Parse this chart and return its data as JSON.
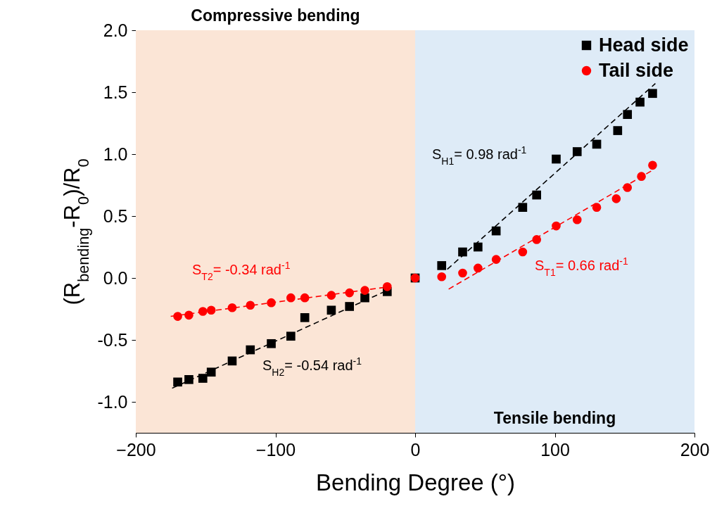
{
  "chart_data": {
    "type": "scatter",
    "xlabel": "Bending Degree (°)",
    "ylabel": "(R$_{bending}$-R$_{0}$)/R$_{0}$",
    "xlim": [
      -200,
      200
    ],
    "xticks": [
      -200,
      -100,
      0,
      100,
      200
    ],
    "ylim": [
      -1.25,
      2.0
    ],
    "yticks": [
      {
        "value": -1,
        "label": "-1.0"
      },
      -0.5,
      {
        "value": 0,
        "label": "0.0"
      },
      0.5,
      {
        "value": 1,
        "label": "1.0"
      },
      1.5,
      {
        "value": 2,
        "label": "2.0"
      }
    ],
    "legend": "top right",
    "series": [
      {
        "name": "Head side",
        "type": "scatter",
        "marker": "square",
        "color": "#000000",
        "x": [
          -170,
          -162,
          -152,
          -146,
          -131,
          -118,
          -103,
          -89,
          -79,
          -60,
          -47,
          -36,
          -20,
          0,
          19,
          34,
          45,
          58,
          77,
          87,
          101,
          116,
          130,
          145,
          152,
          161,
          170
        ],
        "values": [
          -0.84,
          -0.82,
          -0.81,
          -0.76,
          -0.67,
          -0.58,
          -0.53,
          -0.47,
          -0.32,
          -0.26,
          -0.23,
          -0.16,
          -0.11,
          0,
          0.1,
          0.21,
          0.25,
          0.38,
          0.57,
          0.67,
          0.96,
          1.02,
          1.08,
          1.19,
          1.32,
          1.42,
          1.49
        ]
      },
      {
        "name": "Tail side",
        "type": "scatter",
        "marker": "circle",
        "color": "#ff0000",
        "x": [
          -170,
          -162,
          -152,
          -146,
          -131,
          -118,
          -103,
          -89,
          -79,
          -60,
          -47,
          -36,
          -20,
          0,
          19,
          34,
          45,
          58,
          77,
          87,
          101,
          116,
          130,
          144,
          152,
          162,
          170
        ],
        "values": [
          -0.31,
          -0.3,
          -0.27,
          -0.26,
          -0.24,
          -0.22,
          -0.2,
          -0.16,
          -0.16,
          -0.14,
          -0.12,
          -0.1,
          -0.07,
          0,
          0.01,
          0.04,
          0.08,
          0.15,
          0.21,
          0.31,
          0.42,
          0.47,
          0.57,
          0.64,
          0.73,
          0.82,
          0.91
        ]
      },
      {
        "type": "line",
        "line_style": "dashed",
        "color": "#000000",
        "x": [
          -174,
          -18
        ],
        "values": [
          -0.89,
          -0.09
        ]
      },
      {
        "type": "line",
        "line_style": "dashed",
        "color": "#000000",
        "x": [
          23,
          172
        ],
        "values": [
          0.07,
          1.57
        ]
      },
      {
        "type": "line",
        "line_style": "dashed",
        "color": "#ff0000",
        "x": [
          -175,
          -18
        ],
        "values": [
          -0.31,
          -0.07
        ]
      },
      {
        "type": "line",
        "line_style": "dashed",
        "color": "#ff0000",
        "x": [
          24,
          170
        ],
        "values": [
          -0.09,
          0.87
        ]
      }
    ],
    "bands": [
      {
        "axis": "x",
        "from": -200,
        "to": 0,
        "label": "Compressive bending",
        "color": "#fbe5d6"
      },
      {
        "axis": "x",
        "from": 0,
        "to": 200,
        "label": "Tensile bending",
        "color": "#deebf7"
      }
    ],
    "annotations": [
      "S$_{H1}$= 0.98 rad$^{-1}$",
      "S$_{T1}$= 0.66 rad$^{-1}$",
      "S$_{T2}$= -0.34 rad$^{-1}$",
      "S$_{H2}$= -0.54 rad$^{-1}$"
    ]
  }
}
